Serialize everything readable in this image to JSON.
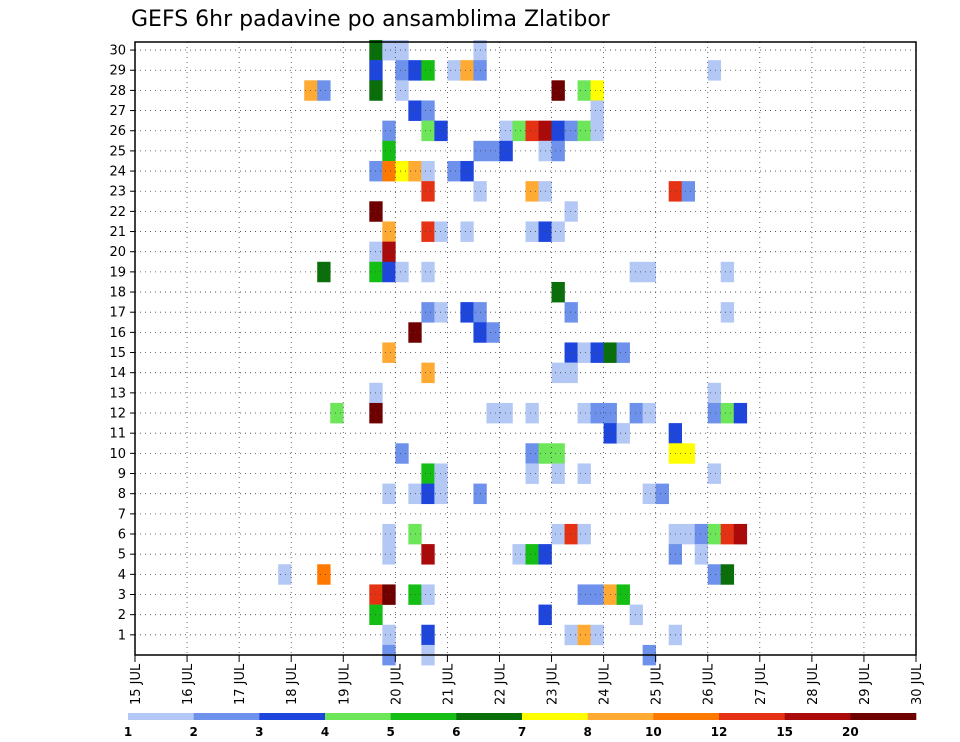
{
  "chart_data": {
    "type": "heatmap",
    "title": "GEFS 6hr padavine po ansamblima Zlatibor",
    "x_tick_labels": [
      "15 JUL",
      "16 JUL",
      "17 JUL",
      "18 JUL",
      "19 JUL",
      "20 JUL",
      "21 JUL",
      "22 JUL",
      "23 JUL",
      "24 JUL",
      "25 JUL",
      "26 JUL",
      "27 JUL",
      "28 JUL",
      "29 JUL",
      "30 JUL"
    ],
    "y_tick_labels": [
      "1",
      "2",
      "3",
      "4",
      "5",
      "6",
      "7",
      "8",
      "9",
      "10",
      "11",
      "12",
      "13",
      "14",
      "15",
      "16",
      "17",
      "18",
      "19",
      "20",
      "21",
      "22",
      "23",
      "24",
      "25",
      "26",
      "27",
      "28",
      "29",
      "30"
    ],
    "xlim": [
      "15 JUL 00z",
      "30 JUL 00z"
    ],
    "ylim": [
      0,
      30
    ],
    "time_step": "6hr",
    "grid": true,
    "colorbar": {
      "tick_labels": [
        "1",
        "2",
        "3",
        "4",
        "5",
        "6",
        "7",
        "8",
        "10",
        "12",
        "15",
        "20"
      ],
      "colors": [
        "#b4c8f5",
        "#6e91eb",
        "#1e46dc",
        "#6ee65a",
        "#14be14",
        "#0a6e0a",
        "#ffff00",
        "#ffaa32",
        "#ff7800",
        "#e63214",
        "#aa0a0a",
        "#6e0000"
      ]
    },
    "cells_note": "each cell: [member, time_index (6h steps from 15 JUL 00z), class_index]",
    "cells": [
      [
        30,
        18,
        5
      ],
      [
        30,
        19,
        0
      ],
      [
        30,
        20,
        0
      ],
      [
        30,
        26,
        0
      ],
      [
        29,
        18,
        2
      ],
      [
        29,
        20,
        1
      ],
      [
        29,
        21,
        2
      ],
      [
        29,
        22,
        4
      ],
      [
        29,
        24,
        0
      ],
      [
        29,
        25,
        7
      ],
      [
        29,
        26,
        1
      ],
      [
        29,
        44,
        0
      ],
      [
        28,
        13,
        7
      ],
      [
        28,
        14,
        1
      ],
      [
        28,
        18,
        5
      ],
      [
        28,
        20,
        0
      ],
      [
        28,
        32,
        11
      ],
      [
        28,
        34,
        3
      ],
      [
        28,
        35,
        6
      ],
      [
        27,
        21,
        2
      ],
      [
        27,
        22,
        1
      ],
      [
        27,
        35,
        0
      ],
      [
        26,
        19,
        1
      ],
      [
        26,
        22,
        3
      ],
      [
        26,
        23,
        2
      ],
      [
        26,
        28,
        0
      ],
      [
        26,
        29,
        3
      ],
      [
        26,
        30,
        9
      ],
      [
        26,
        31,
        10
      ],
      [
        26,
        32,
        2
      ],
      [
        26,
        33,
        1
      ],
      [
        26,
        34,
        3
      ],
      [
        26,
        35,
        0
      ],
      [
        25,
        19,
        4
      ],
      [
        25,
        26,
        1
      ],
      [
        25,
        27,
        1
      ],
      [
        25,
        28,
        2
      ],
      [
        25,
        31,
        0
      ],
      [
        25,
        32,
        1
      ],
      [
        24,
        18,
        1
      ],
      [
        24,
        19,
        8
      ],
      [
        24,
        20,
        6
      ],
      [
        24,
        21,
        7
      ],
      [
        24,
        22,
        0
      ],
      [
        24,
        24,
        1
      ],
      [
        24,
        25,
        2
      ],
      [
        23,
        22,
        9
      ],
      [
        23,
        26,
        0
      ],
      [
        23,
        30,
        7
      ],
      [
        23,
        31,
        0
      ],
      [
        23,
        41,
        9
      ],
      [
        23,
        42,
        1
      ],
      [
        22,
        18,
        11
      ],
      [
        22,
        33,
        0
      ],
      [
        21,
        19,
        7
      ],
      [
        21,
        22,
        9
      ],
      [
        21,
        23,
        0
      ],
      [
        21,
        25,
        0
      ],
      [
        21,
        30,
        0
      ],
      [
        21,
        31,
        2
      ],
      [
        21,
        32,
        0
      ],
      [
        20,
        18,
        0
      ],
      [
        20,
        19,
        10
      ],
      [
        19,
        14,
        5
      ],
      [
        19,
        18,
        4
      ],
      [
        19,
        19,
        2
      ],
      [
        19,
        20,
        0
      ],
      [
        19,
        22,
        0
      ],
      [
        19,
        38,
        0
      ],
      [
        19,
        39,
        0
      ],
      [
        19,
        45,
        0
      ],
      [
        18,
        32,
        5
      ],
      [
        17,
        22,
        1
      ],
      [
        17,
        23,
        0
      ],
      [
        17,
        25,
        2
      ],
      [
        17,
        26,
        1
      ],
      [
        17,
        33,
        1
      ],
      [
        17,
        45,
        0
      ],
      [
        16,
        21,
        11
      ],
      [
        16,
        26,
        2
      ],
      [
        16,
        27,
        1
      ],
      [
        15,
        19,
        7
      ],
      [
        15,
        33,
        2
      ],
      [
        15,
        34,
        0
      ],
      [
        15,
        35,
        2
      ],
      [
        15,
        36,
        5
      ],
      [
        15,
        37,
        1
      ],
      [
        14,
        22,
        7
      ],
      [
        14,
        32,
        0
      ],
      [
        14,
        33,
        0
      ],
      [
        13,
        18,
        0
      ],
      [
        13,
        44,
        0
      ],
      [
        12,
        15,
        3
      ],
      [
        12,
        18,
        11
      ],
      [
        12,
        27,
        0
      ],
      [
        12,
        28,
        0
      ],
      [
        12,
        30,
        0
      ],
      [
        12,
        34,
        0
      ],
      [
        12,
        35,
        1
      ],
      [
        12,
        36,
        1
      ],
      [
        12,
        38,
        1
      ],
      [
        12,
        39,
        0
      ],
      [
        12,
        44,
        1
      ],
      [
        12,
        45,
        3
      ],
      [
        12,
        46,
        2
      ],
      [
        11,
        36,
        2
      ],
      [
        11,
        37,
        0
      ],
      [
        11,
        41,
        2
      ],
      [
        10,
        20,
        1
      ],
      [
        10,
        30,
        1
      ],
      [
        10,
        31,
        3
      ],
      [
        10,
        32,
        3
      ],
      [
        10,
        41,
        6
      ],
      [
        10,
        42,
        6
      ],
      [
        9,
        22,
        4
      ],
      [
        9,
        23,
        0
      ],
      [
        9,
        30,
        0
      ],
      [
        9,
        32,
        0
      ],
      [
        9,
        34,
        0
      ],
      [
        9,
        44,
        0
      ],
      [
        8,
        19,
        0
      ],
      [
        8,
        21,
        0
      ],
      [
        8,
        22,
        2
      ],
      [
        8,
        23,
        0
      ],
      [
        8,
        26,
        1
      ],
      [
        8,
        39,
        0
      ],
      [
        8,
        40,
        1
      ],
      [
        6,
        19,
        0
      ],
      [
        6,
        21,
        3
      ],
      [
        6,
        32,
        0
      ],
      [
        6,
        33,
        9
      ],
      [
        6,
        34,
        0
      ],
      [
        6,
        41,
        0
      ],
      [
        6,
        42,
        0
      ],
      [
        6,
        43,
        1
      ],
      [
        6,
        44,
        3
      ],
      [
        6,
        45,
        9
      ],
      [
        6,
        46,
        10
      ],
      [
        5,
        19,
        0
      ],
      [
        5,
        22,
        10
      ],
      [
        5,
        29,
        0
      ],
      [
        5,
        30,
        4
      ],
      [
        5,
        31,
        2
      ],
      [
        5,
        41,
        1
      ],
      [
        5,
        43,
        0
      ],
      [
        4,
        11,
        0
      ],
      [
        4,
        14,
        8
      ],
      [
        4,
        44,
        1
      ],
      [
        4,
        45,
        5
      ],
      [
        3,
        18,
        9
      ],
      [
        3,
        19,
        11
      ],
      [
        3,
        21,
        4
      ],
      [
        3,
        22,
        0
      ],
      [
        3,
        34,
        1
      ],
      [
        3,
        35,
        1
      ],
      [
        3,
        36,
        7
      ],
      [
        3,
        37,
        4
      ],
      [
        2,
        18,
        4
      ],
      [
        2,
        31,
        2
      ],
      [
        2,
        38,
        0
      ],
      [
        1,
        19,
        0
      ],
      [
        1,
        22,
        2
      ],
      [
        1,
        33,
        0
      ],
      [
        1,
        34,
        7
      ],
      [
        1,
        35,
        0
      ],
      [
        1,
        41,
        0
      ],
      [
        0,
        19,
        1
      ],
      [
        0,
        22,
        0
      ],
      [
        0,
        39,
        1
      ]
    ]
  }
}
